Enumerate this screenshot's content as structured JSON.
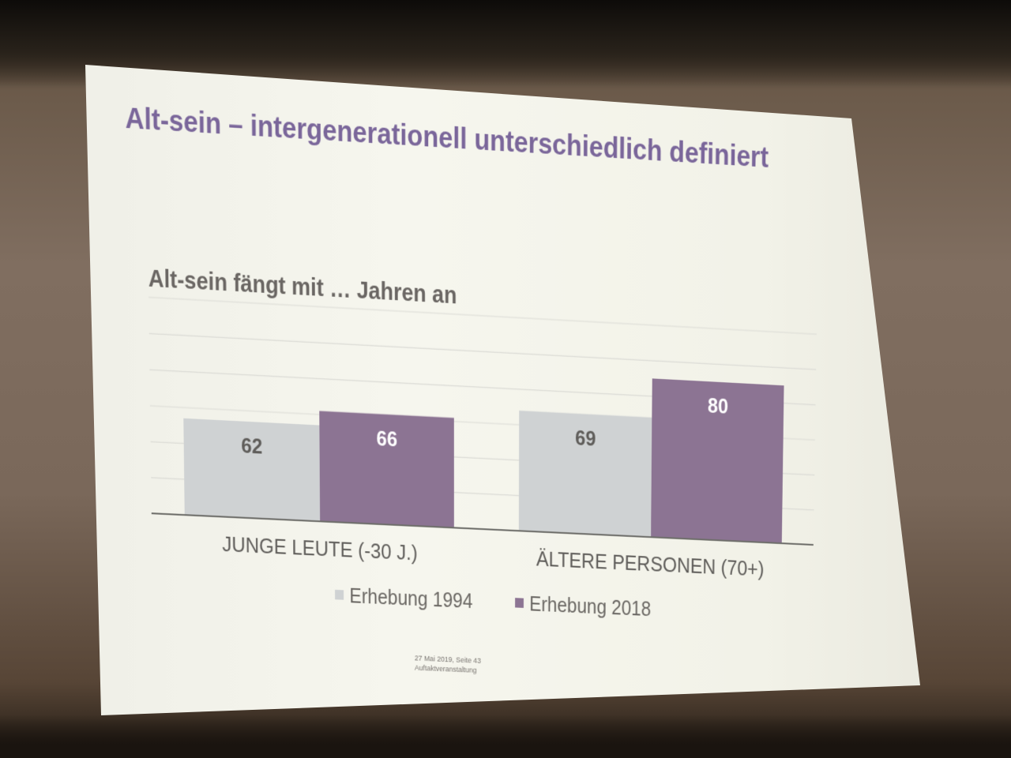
{
  "slide": {
    "title": "Alt-sein – intergenerationell unterschiedlich definiert",
    "footer_line1": "27  Mai 2019, Seite 43",
    "footer_line2": "Auftaktveranstaltung"
  },
  "chart_data": {
    "type": "bar",
    "title": "Alt-sein fängt mit … Jahren an",
    "categories": [
      "JUNGE LEUTE (-30 J.)",
      "ÄLTERE PERSONEN (70+)"
    ],
    "series": [
      {
        "name": "Erhebung 1994",
        "values": [
          62,
          69
        ],
        "color": "#cfd2d3"
      },
      {
        "name": "Erhebung 2018",
        "values": [
          66,
          80
        ],
        "color": "#8c7493"
      }
    ],
    "ylim": [
      35,
      95
    ],
    "data_labels": true,
    "grid": true,
    "legend_position": "bottom"
  }
}
